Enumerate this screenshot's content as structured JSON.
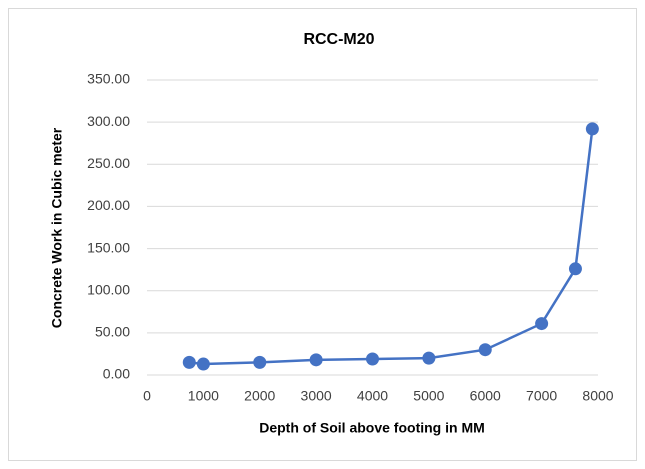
{
  "chart_data": {
    "type": "line",
    "title": "RCC-M20",
    "xlabel": "Depth of Soil above footing in MM",
    "ylabel": "Concrete Work in Cubic meter",
    "x": [
      750,
      1000,
      2000,
      3000,
      4000,
      5000,
      6000,
      7000,
      7600,
      7900
    ],
    "series": [
      {
        "name": "RCC-M20",
        "color": "#4472c4",
        "values": [
          15,
          13,
          15,
          18,
          19,
          20,
          30,
          61,
          126,
          292
        ]
      }
    ],
    "xlim": [
      0,
      8000
    ],
    "xticks": [
      0,
      1000,
      2000,
      3000,
      4000,
      5000,
      6000,
      7000,
      8000
    ],
    "ylim": [
      0,
      350
    ],
    "yticks": [
      {
        "value": 0,
        "label": "0.00"
      },
      {
        "value": 50,
        "label": "50.00"
      },
      {
        "value": 100,
        "label": "100.00"
      },
      {
        "value": 150,
        "label": "150.00"
      },
      {
        "value": 200,
        "label": "200.00"
      },
      {
        "value": 250,
        "label": "250.00"
      },
      {
        "value": 300,
        "label": "300.00"
      },
      {
        "value": 350,
        "label": "350.00"
      }
    ],
    "grid": true
  }
}
